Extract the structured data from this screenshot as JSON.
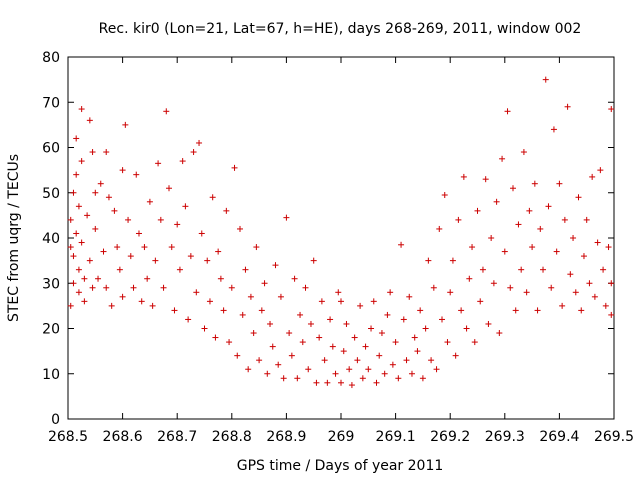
{
  "chart_data": {
    "type": "scatter",
    "title": "Rec. kir0 (Lon=21, Lat=67, h=HE), days 268-269, 2011, window 002",
    "xlabel": "GPS time / Days of year 2011",
    "ylabel": "STEC from uqrg / TECUs",
    "xlim": [
      268.5,
      269.5
    ],
    "ylim": [
      0,
      80
    ],
    "x_ticks": [
      "268.5",
      "268.6",
      "268.7",
      "268.8",
      "268.9",
      "269",
      "269.1",
      "269.2",
      "269.3",
      "269.4",
      "269.5"
    ],
    "y_ticks": [
      "0",
      "10",
      "20",
      "30",
      "40",
      "50",
      "60",
      "70",
      "80"
    ],
    "grid": false,
    "marker": "+",
    "color": "#cc0000",
    "points": [
      [
        268.505,
        25
      ],
      [
        268.505,
        38
      ],
      [
        268.505,
        44
      ],
      [
        268.51,
        50
      ],
      [
        268.51,
        36
      ],
      [
        268.51,
        30
      ],
      [
        268.515,
        62
      ],
      [
        268.515,
        54
      ],
      [
        268.515,
        41
      ],
      [
        268.52,
        33
      ],
      [
        268.52,
        28
      ],
      [
        268.52,
        47
      ],
      [
        268.525,
        68.5
      ],
      [
        268.525,
        57
      ],
      [
        268.525,
        39
      ],
      [
        268.53,
        31
      ],
      [
        268.53,
        26
      ],
      [
        268.535,
        45
      ],
      [
        268.54,
        66
      ],
      [
        268.54,
        35
      ],
      [
        268.545,
        59
      ],
      [
        268.545,
        29
      ],
      [
        268.55,
        50
      ],
      [
        268.55,
        42
      ],
      [
        268.555,
        31
      ],
      [
        268.56,
        52
      ],
      [
        268.565,
        37
      ],
      [
        268.57,
        59
      ],
      [
        268.57,
        29
      ],
      [
        268.575,
        49
      ],
      [
        268.58,
        25
      ],
      [
        268.585,
        46
      ],
      [
        268.59,
        38
      ],
      [
        268.595,
        33
      ],
      [
        268.6,
        55
      ],
      [
        268.6,
        27
      ],
      [
        268.605,
        65
      ],
      [
        268.61,
        44
      ],
      [
        268.615,
        36
      ],
      [
        268.62,
        29
      ],
      [
        268.625,
        54
      ],
      [
        268.63,
        41
      ],
      [
        268.635,
        26
      ],
      [
        268.64,
        38
      ],
      [
        268.645,
        31
      ],
      [
        268.65,
        48
      ],
      [
        268.655,
        25
      ],
      [
        268.66,
        35
      ],
      [
        268.665,
        56.5
      ],
      [
        268.67,
        44
      ],
      [
        268.675,
        29
      ],
      [
        268.68,
        68
      ],
      [
        268.685,
        51
      ],
      [
        268.69,
        38
      ],
      [
        268.695,
        24
      ],
      [
        268.7,
        43
      ],
      [
        268.705,
        33
      ],
      [
        268.71,
        57
      ],
      [
        268.715,
        47
      ],
      [
        268.72,
        22
      ],
      [
        268.725,
        36
      ],
      [
        268.73,
        59
      ],
      [
        268.735,
        28
      ],
      [
        268.74,
        61
      ],
      [
        268.745,
        41
      ],
      [
        268.75,
        20
      ],
      [
        268.755,
        35
      ],
      [
        268.76,
        26
      ],
      [
        268.765,
        49
      ],
      [
        268.77,
        18
      ],
      [
        268.775,
        37
      ],
      [
        268.78,
        31
      ],
      [
        268.785,
        24
      ],
      [
        268.79,
        46
      ],
      [
        268.795,
        17
      ],
      [
        268.8,
        29
      ],
      [
        268.805,
        55.5
      ],
      [
        268.81,
        14
      ],
      [
        268.815,
        42
      ],
      [
        268.82,
        23
      ],
      [
        268.825,
        33
      ],
      [
        268.83,
        11
      ],
      [
        268.835,
        27
      ],
      [
        268.84,
        19
      ],
      [
        268.845,
        38
      ],
      [
        268.85,
        13
      ],
      [
        268.855,
        24
      ],
      [
        268.86,
        30
      ],
      [
        268.865,
        10
      ],
      [
        268.87,
        21
      ],
      [
        268.875,
        16
      ],
      [
        268.88,
        34
      ],
      [
        268.885,
        12
      ],
      [
        268.89,
        27
      ],
      [
        268.895,
        9
      ],
      [
        268.9,
        44.5
      ],
      [
        268.905,
        19
      ],
      [
        268.91,
        14
      ],
      [
        268.915,
        31
      ],
      [
        268.92,
        9
      ],
      [
        268.925,
        23
      ],
      [
        268.93,
        17
      ],
      [
        268.935,
        29
      ],
      [
        268.94,
        11
      ],
      [
        268.945,
        21
      ],
      [
        268.95,
        35
      ],
      [
        268.955,
        8
      ],
      [
        268.96,
        18
      ],
      [
        268.965,
        26
      ],
      [
        268.97,
        13
      ],
      [
        268.975,
        8
      ],
      [
        268.98,
        22
      ],
      [
        268.985,
        16
      ],
      [
        268.99,
        10
      ],
      [
        268.995,
        28
      ],
      [
        269.0,
        26
      ],
      [
        269.0,
        8
      ],
      [
        269.005,
        15
      ],
      [
        269.01,
        21
      ],
      [
        269.015,
        11
      ],
      [
        269.02,
        7.5
      ],
      [
        269.025,
        18
      ],
      [
        269.03,
        13
      ],
      [
        269.035,
        25
      ],
      [
        269.04,
        9
      ],
      [
        269.045,
        16
      ],
      [
        269.05,
        11
      ],
      [
        269.055,
        20
      ],
      [
        269.06,
        26
      ],
      [
        269.065,
        8
      ],
      [
        269.07,
        14
      ],
      [
        269.075,
        19
      ],
      [
        269.08,
        10
      ],
      [
        269.085,
        23
      ],
      [
        269.09,
        28
      ],
      [
        269.095,
        12
      ],
      [
        269.1,
        17
      ],
      [
        269.105,
        9
      ],
      [
        269.11,
        38.5
      ],
      [
        269.115,
        22
      ],
      [
        269.12,
        13
      ],
      [
        269.125,
        27
      ],
      [
        269.13,
        10
      ],
      [
        269.135,
        18
      ],
      [
        269.14,
        15
      ],
      [
        269.145,
        24
      ],
      [
        269.15,
        9
      ],
      [
        269.155,
        20
      ],
      [
        269.16,
        35
      ],
      [
        269.165,
        13
      ],
      [
        269.17,
        29
      ],
      [
        269.175,
        11
      ],
      [
        269.18,
        42
      ],
      [
        269.185,
        22
      ],
      [
        269.19,
        49.5
      ],
      [
        269.195,
        17
      ],
      [
        269.2,
        28
      ],
      [
        269.205,
        35
      ],
      [
        269.21,
        14
      ],
      [
        269.215,
        44
      ],
      [
        269.22,
        24
      ],
      [
        269.225,
        53.5
      ],
      [
        269.23,
        20
      ],
      [
        269.235,
        31
      ],
      [
        269.24,
        38
      ],
      [
        269.245,
        17
      ],
      [
        269.25,
        46
      ],
      [
        269.255,
        26
      ],
      [
        269.26,
        33
      ],
      [
        269.265,
        53
      ],
      [
        269.27,
        21
      ],
      [
        269.275,
        40
      ],
      [
        269.28,
        30
      ],
      [
        269.285,
        48
      ],
      [
        269.29,
        19
      ],
      [
        269.295,
        57.5
      ],
      [
        269.3,
        37
      ],
      [
        269.305,
        68
      ],
      [
        269.31,
        29
      ],
      [
        269.315,
        51
      ],
      [
        269.32,
        24
      ],
      [
        269.325,
        43
      ],
      [
        269.33,
        33
      ],
      [
        269.335,
        59
      ],
      [
        269.34,
        28
      ],
      [
        269.345,
        46
      ],
      [
        269.35,
        38
      ],
      [
        269.355,
        52
      ],
      [
        269.36,
        24
      ],
      [
        269.365,
        42
      ],
      [
        269.37,
        33
      ],
      [
        269.375,
        75
      ],
      [
        269.38,
        47
      ],
      [
        269.385,
        29
      ],
      [
        269.39,
        64
      ],
      [
        269.395,
        37
      ],
      [
        269.4,
        52
      ],
      [
        269.405,
        25
      ],
      [
        269.41,
        44
      ],
      [
        269.415,
        69
      ],
      [
        269.42,
        32
      ],
      [
        269.425,
        40
      ],
      [
        269.43,
        28
      ],
      [
        269.435,
        49
      ],
      [
        269.44,
        24
      ],
      [
        269.445,
        36
      ],
      [
        269.45,
        44
      ],
      [
        269.455,
        30
      ],
      [
        269.46,
        53.5
      ],
      [
        269.465,
        27
      ],
      [
        269.47,
        39
      ],
      [
        269.475,
        55
      ],
      [
        269.48,
        33
      ],
      [
        269.485,
        25
      ],
      [
        269.49,
        38
      ],
      [
        269.495,
        68.5
      ],
      [
        269.495,
        23
      ],
      [
        269.495,
        30
      ]
    ]
  }
}
